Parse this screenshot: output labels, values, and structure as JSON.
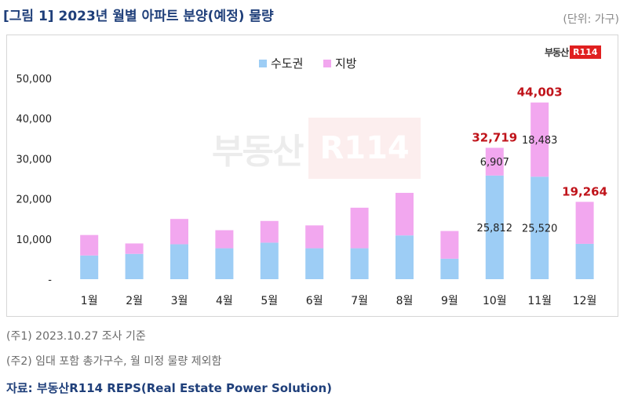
{
  "title": "[그림 1] 2023년 월별 아파트 분양(예정) 물량",
  "unit_label": "(단위: 가구)",
  "brand": {
    "text": "부동산",
    "mark": "R114"
  },
  "notes": [
    "(주1) 2023.10.27 조사 기준",
    "(주2) 임대 포함 총가구수, 월 미정 물량 제외함"
  ],
  "source": "자료: 부동산R114 REPS(Real Estate Power Solution)",
  "chart_data": {
    "type": "bar",
    "stacked": true,
    "categories": [
      "1월",
      "2월",
      "3월",
      "4월",
      "5월",
      "6월",
      "7월",
      "8월",
      "9월",
      "10월",
      "11월",
      "12월"
    ],
    "series": [
      {
        "name": "수도권",
        "color": "#9dcdf5",
        "values": [
          5900,
          6300,
          8700,
          7700,
          9100,
          7700,
          7700,
          10900,
          5100,
          25812,
          25520,
          8800
        ]
      },
      {
        "name": "지방",
        "color": "#f2a7ef",
        "values": [
          5100,
          2600,
          6300,
          4500,
          5400,
          5700,
          10100,
          10600,
          6900,
          6907,
          18483,
          10464
        ]
      }
    ],
    "inner_labels": [
      {
        "index": 9,
        "series": 0,
        "text": "25,812"
      },
      {
        "index": 9,
        "series": 1,
        "text": "6,907"
      },
      {
        "index": 10,
        "series": 0,
        "text": "25,520"
      },
      {
        "index": 10,
        "series": 1,
        "text": "18,483"
      }
    ],
    "total_labels": [
      {
        "index": 9,
        "text": "32,719"
      },
      {
        "index": 10,
        "text": "44,003"
      },
      {
        "index": 11,
        "text": "19,264"
      }
    ],
    "total_label_color": "#c0141b",
    "yticks": [
      "-",
      "10,000",
      "20,000",
      "30,000",
      "40,000",
      "50,000"
    ],
    "ylim": [
      0,
      50000
    ],
    "grid": false,
    "legend_position": "top-center"
  }
}
